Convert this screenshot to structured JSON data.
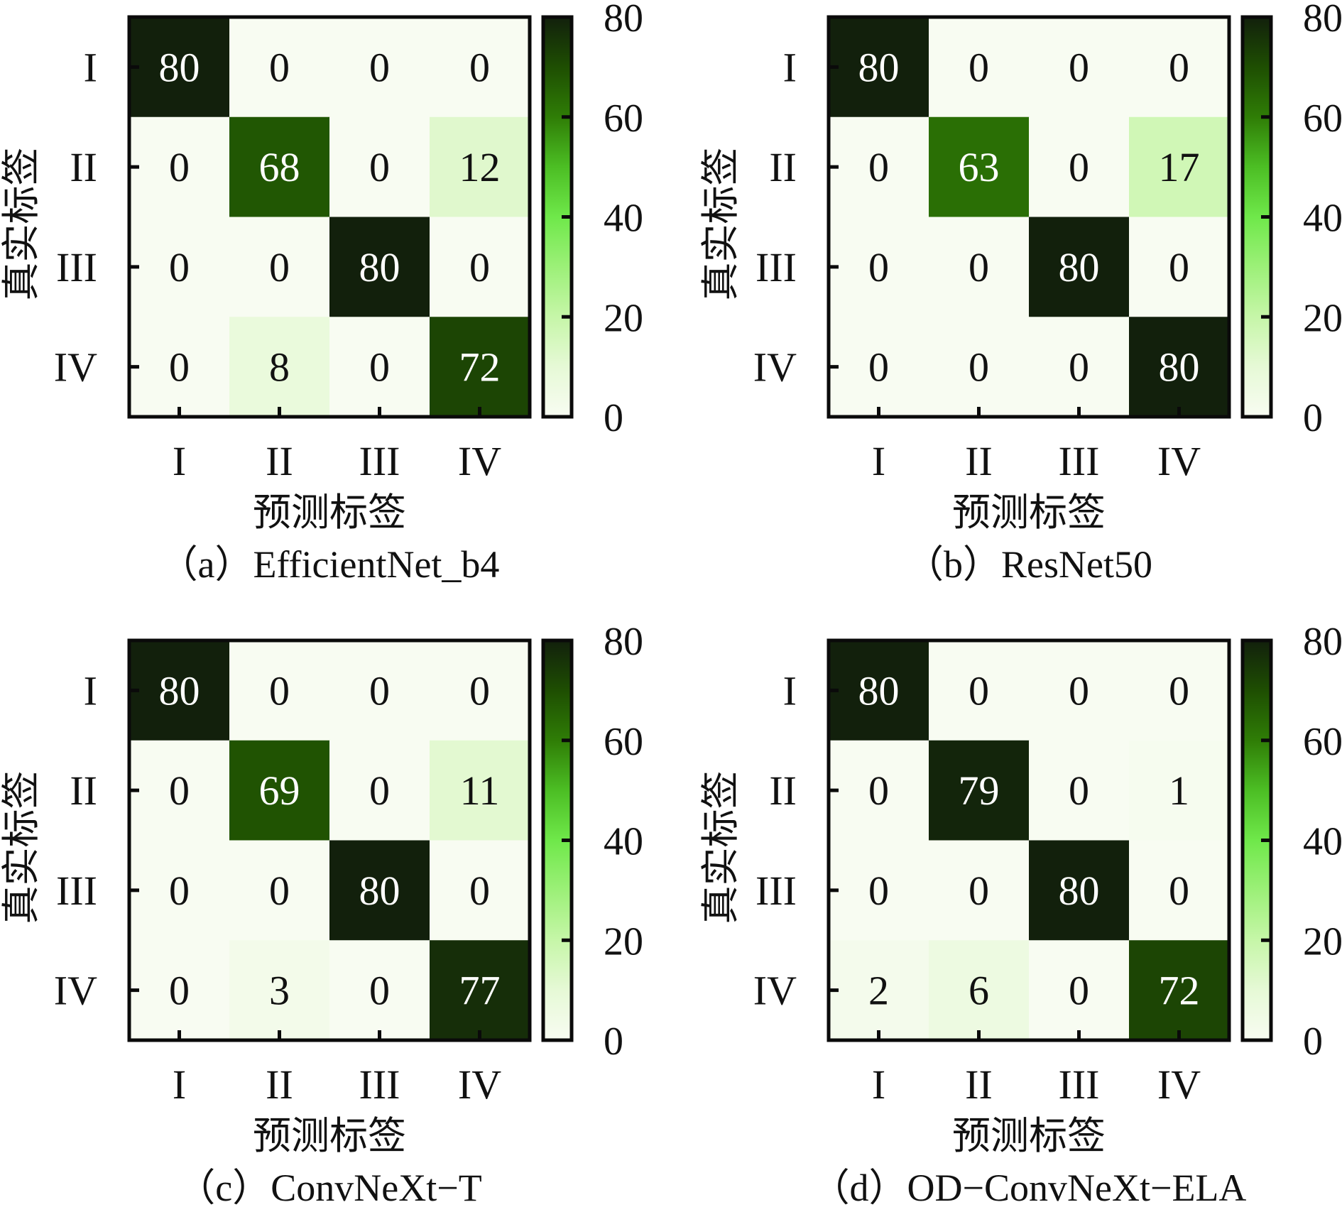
{
  "chart_data": [
    {
      "type": "heatmap",
      "panel": "a",
      "caption": "（a）EfficientNet_b4",
      "xlabel": "预测标签",
      "ylabel": "真实标签",
      "x_categories": [
        "I",
        "II",
        "III",
        "IV"
      ],
      "y_categories": [
        "I",
        "II",
        "III",
        "IV"
      ],
      "values": [
        [
          80,
          0,
          0,
          0
        ],
        [
          0,
          68,
          0,
          12
        ],
        [
          0,
          0,
          80,
          0
        ],
        [
          0,
          8,
          0,
          72
        ]
      ],
      "colorbar": {
        "range": [
          0,
          80
        ],
        "ticks": [
          "0",
          "20",
          "40",
          "60",
          "80"
        ]
      }
    },
    {
      "type": "heatmap",
      "panel": "b",
      "caption": "（b）ResNet50",
      "xlabel": "预测标签",
      "ylabel": "真实标签",
      "x_categories": [
        "I",
        "II",
        "III",
        "IV"
      ],
      "y_categories": [
        "I",
        "II",
        "III",
        "IV"
      ],
      "values": [
        [
          80,
          0,
          0,
          0
        ],
        [
          0,
          63,
          0,
          17
        ],
        [
          0,
          0,
          80,
          0
        ],
        [
          0,
          0,
          0,
          80
        ]
      ],
      "colorbar": {
        "range": [
          0,
          80
        ],
        "ticks": [
          "0",
          "20",
          "40",
          "60",
          "80"
        ]
      }
    },
    {
      "type": "heatmap",
      "panel": "c",
      "caption": "（c）ConvNeXt−T",
      "xlabel": "预测标签",
      "ylabel": "真实标签",
      "x_categories": [
        "I",
        "II",
        "III",
        "IV"
      ],
      "y_categories": [
        "I",
        "II",
        "III",
        "IV"
      ],
      "values": [
        [
          80,
          0,
          0,
          0
        ],
        [
          0,
          69,
          0,
          11
        ],
        [
          0,
          0,
          80,
          0
        ],
        [
          0,
          3,
          0,
          77
        ]
      ],
      "colorbar": {
        "range": [
          0,
          80
        ],
        "ticks": [
          "0",
          "20",
          "40",
          "60",
          "80"
        ]
      }
    },
    {
      "type": "heatmap",
      "panel": "d",
      "caption": "（d）OD−ConvNeXt−ELA",
      "xlabel": "预测标签",
      "ylabel": "真实标签",
      "x_categories": [
        "I",
        "II",
        "III",
        "IV"
      ],
      "y_categories": [
        "I",
        "II",
        "III",
        "IV"
      ],
      "values": [
        [
          80,
          0,
          0,
          0
        ],
        [
          0,
          79,
          0,
          1
        ],
        [
          0,
          0,
          80,
          0
        ],
        [
          2,
          6,
          0,
          72
        ]
      ],
      "colorbar": {
        "range": [
          0,
          80
        ],
        "ticks": [
          "0",
          "20",
          "40",
          "60",
          "80"
        ]
      }
    }
  ],
  "colormap": {
    "stops": [
      {
        "value": 0,
        "color": "#f8fcf2"
      },
      {
        "value": 10,
        "color": "#e6f9d6"
      },
      {
        "value": 20,
        "color": "#c6f6a8"
      },
      {
        "value": 30,
        "color": "#9cf078"
      },
      {
        "value": 40,
        "color": "#6fe84a"
      },
      {
        "value": 50,
        "color": "#4cbe24"
      },
      {
        "value": 60,
        "color": "#2f7d06"
      },
      {
        "value": 70,
        "color": "#1e4e02"
      },
      {
        "value": 80,
        "color": "#12200c"
      }
    ],
    "text_dark": "#111111",
    "text_light": "#ffffff",
    "light_text_threshold": 40,
    "frame": "#0a0a0a"
  }
}
